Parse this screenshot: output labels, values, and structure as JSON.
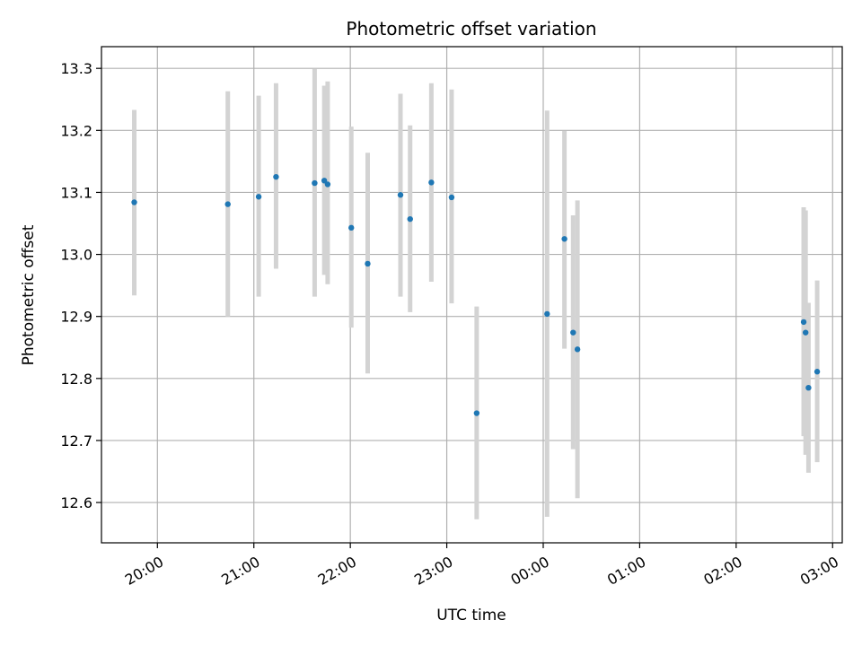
{
  "chart_data": {
    "type": "scatter",
    "title": "Photometric offset variation",
    "xlabel": "UTC time",
    "ylabel": "Photometric offset",
    "x_unit": "hours since 00:00 UTC (negative = previous evening)",
    "xlim": [
      -4.58,
      3.1
    ],
    "ylim": [
      12.535,
      13.335
    ],
    "grid": true,
    "x_ticks": [
      {
        "value": -4,
        "label": "20:00"
      },
      {
        "value": -3,
        "label": "21:00"
      },
      {
        "value": -2,
        "label": "22:00"
      },
      {
        "value": -1,
        "label": "23:00"
      },
      {
        "value": 0,
        "label": "00:00"
      },
      {
        "value": 1,
        "label": "01:00"
      },
      {
        "value": 2,
        "label": "02:00"
      },
      {
        "value": 3,
        "label": "03:00"
      }
    ],
    "y_ticks": [
      {
        "value": 12.6,
        "label": "12.6"
      },
      {
        "value": 12.7,
        "label": "12.7"
      },
      {
        "value": 12.8,
        "label": "12.8"
      },
      {
        "value": 12.9,
        "label": "12.9"
      },
      {
        "value": 13.0,
        "label": "13.0"
      },
      {
        "value": 13.1,
        "label": "13.1"
      },
      {
        "value": 13.2,
        "label": "13.2"
      },
      {
        "value": 13.3,
        "label": "13.3"
      }
    ],
    "series": [
      {
        "marker_color": "#1f77b4",
        "errorbar_color": "#d3d3d3",
        "points": [
          {
            "x": -4.24,
            "y": 13.084,
            "ylo": 12.934,
            "yhi": 13.233
          },
          {
            "x": -3.27,
            "y": 13.081,
            "ylo": 12.9,
            "yhi": 13.263
          },
          {
            "x": -2.95,
            "y": 13.093,
            "ylo": 12.932,
            "yhi": 13.256
          },
          {
            "x": -2.77,
            "y": 13.125,
            "ylo": 12.977,
            "yhi": 13.276
          },
          {
            "x": -2.37,
            "y": 13.115,
            "ylo": 12.932,
            "yhi": 13.299
          },
          {
            "x": -2.27,
            "y": 13.119,
            "ylo": 12.967,
            "yhi": 13.272
          },
          {
            "x": -2.235,
            "y": 13.113,
            "ylo": 12.952,
            "yhi": 13.279
          },
          {
            "x": -1.99,
            "y": 13.043,
            "ylo": 12.882,
            "yhi": 13.206
          },
          {
            "x": -1.82,
            "y": 12.985,
            "ylo": 12.808,
            "yhi": 13.164
          },
          {
            "x": -1.48,
            "y": 13.096,
            "ylo": 12.932,
            "yhi": 13.259
          },
          {
            "x": -1.38,
            "y": 13.057,
            "ylo": 12.907,
            "yhi": 13.208
          },
          {
            "x": -1.16,
            "y": 13.116,
            "ylo": 12.956,
            "yhi": 13.276
          },
          {
            "x": -0.95,
            "y": 13.092,
            "ylo": 12.921,
            "yhi": 13.266
          },
          {
            "x": -0.69,
            "y": 12.744,
            "ylo": 12.573,
            "yhi": 12.916
          },
          {
            "x": 0.04,
            "y": 12.904,
            "ylo": 12.577,
            "yhi": 13.232
          },
          {
            "x": 0.22,
            "y": 13.025,
            "ylo": 12.848,
            "yhi": 13.199
          },
          {
            "x": 0.31,
            "y": 12.874,
            "ylo": 12.686,
            "yhi": 13.063
          },
          {
            "x": 0.355,
            "y": 12.847,
            "ylo": 12.607,
            "yhi": 13.087
          },
          {
            "x": 2.7,
            "y": 12.891,
            "ylo": 12.707,
            "yhi": 13.076
          },
          {
            "x": 2.72,
            "y": 12.874,
            "ylo": 12.677,
            "yhi": 13.071
          },
          {
            "x": 2.75,
            "y": 12.785,
            "ylo": 12.648,
            "yhi": 12.922
          },
          {
            "x": 2.84,
            "y": 12.811,
            "ylo": 12.665,
            "yhi": 12.958
          }
        ]
      }
    ]
  }
}
